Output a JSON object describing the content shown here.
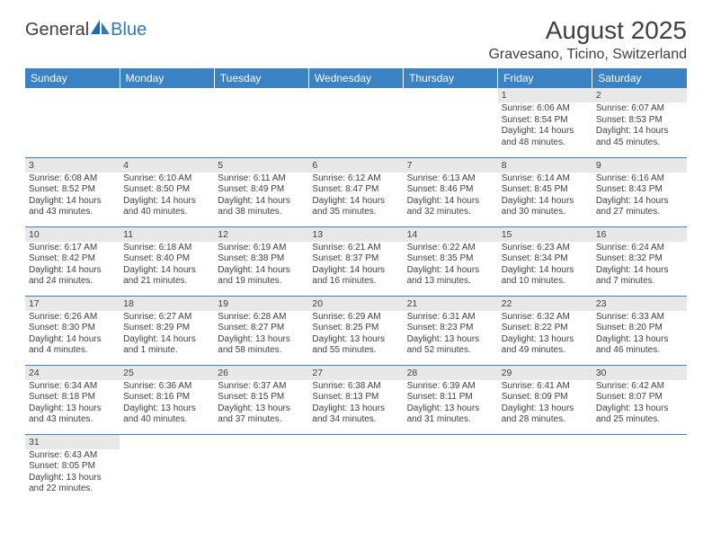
{
  "logo": {
    "part1": "General",
    "part2": "Blue"
  },
  "title": "August 2025",
  "location": "Gravesano, Ticino, Switzerland",
  "colors": {
    "header_bg": "#3b82c4",
    "header_text": "#ffffff",
    "daynum_bg": "#e8e8e8",
    "text": "#404040",
    "rule": "#3b82c4",
    "logo_blue": "#2b7bbf"
  },
  "daysOfWeek": [
    "Sunday",
    "Monday",
    "Tuesday",
    "Wednesday",
    "Thursday",
    "Friday",
    "Saturday"
  ],
  "weeks": [
    [
      null,
      null,
      null,
      null,
      null,
      {
        "n": "1",
        "sr": "Sunrise: 6:06 AM",
        "ss": "Sunset: 8:54 PM",
        "d1": "Daylight: 14 hours",
        "d2": "and 48 minutes."
      },
      {
        "n": "2",
        "sr": "Sunrise: 6:07 AM",
        "ss": "Sunset: 8:53 PM",
        "d1": "Daylight: 14 hours",
        "d2": "and 45 minutes."
      }
    ],
    [
      {
        "n": "3",
        "sr": "Sunrise: 6:08 AM",
        "ss": "Sunset: 8:52 PM",
        "d1": "Daylight: 14 hours",
        "d2": "and 43 minutes."
      },
      {
        "n": "4",
        "sr": "Sunrise: 6:10 AM",
        "ss": "Sunset: 8:50 PM",
        "d1": "Daylight: 14 hours",
        "d2": "and 40 minutes."
      },
      {
        "n": "5",
        "sr": "Sunrise: 6:11 AM",
        "ss": "Sunset: 8:49 PM",
        "d1": "Daylight: 14 hours",
        "d2": "and 38 minutes."
      },
      {
        "n": "6",
        "sr": "Sunrise: 6:12 AM",
        "ss": "Sunset: 8:47 PM",
        "d1": "Daylight: 14 hours",
        "d2": "and 35 minutes."
      },
      {
        "n": "7",
        "sr": "Sunrise: 6:13 AM",
        "ss": "Sunset: 8:46 PM",
        "d1": "Daylight: 14 hours",
        "d2": "and 32 minutes."
      },
      {
        "n": "8",
        "sr": "Sunrise: 6:14 AM",
        "ss": "Sunset: 8:45 PM",
        "d1": "Daylight: 14 hours",
        "d2": "and 30 minutes."
      },
      {
        "n": "9",
        "sr": "Sunrise: 6:16 AM",
        "ss": "Sunset: 8:43 PM",
        "d1": "Daylight: 14 hours",
        "d2": "and 27 minutes."
      }
    ],
    [
      {
        "n": "10",
        "sr": "Sunrise: 6:17 AM",
        "ss": "Sunset: 8:42 PM",
        "d1": "Daylight: 14 hours",
        "d2": "and 24 minutes."
      },
      {
        "n": "11",
        "sr": "Sunrise: 6:18 AM",
        "ss": "Sunset: 8:40 PM",
        "d1": "Daylight: 14 hours",
        "d2": "and 21 minutes."
      },
      {
        "n": "12",
        "sr": "Sunrise: 6:19 AM",
        "ss": "Sunset: 8:38 PM",
        "d1": "Daylight: 14 hours",
        "d2": "and 19 minutes."
      },
      {
        "n": "13",
        "sr": "Sunrise: 6:21 AM",
        "ss": "Sunset: 8:37 PM",
        "d1": "Daylight: 14 hours",
        "d2": "and 16 minutes."
      },
      {
        "n": "14",
        "sr": "Sunrise: 6:22 AM",
        "ss": "Sunset: 8:35 PM",
        "d1": "Daylight: 14 hours",
        "d2": "and 13 minutes."
      },
      {
        "n": "15",
        "sr": "Sunrise: 6:23 AM",
        "ss": "Sunset: 8:34 PM",
        "d1": "Daylight: 14 hours",
        "d2": "and 10 minutes."
      },
      {
        "n": "16",
        "sr": "Sunrise: 6:24 AM",
        "ss": "Sunset: 8:32 PM",
        "d1": "Daylight: 14 hours",
        "d2": "and 7 minutes."
      }
    ],
    [
      {
        "n": "17",
        "sr": "Sunrise: 6:26 AM",
        "ss": "Sunset: 8:30 PM",
        "d1": "Daylight: 14 hours",
        "d2": "and 4 minutes."
      },
      {
        "n": "18",
        "sr": "Sunrise: 6:27 AM",
        "ss": "Sunset: 8:29 PM",
        "d1": "Daylight: 14 hours",
        "d2": "and 1 minute."
      },
      {
        "n": "19",
        "sr": "Sunrise: 6:28 AM",
        "ss": "Sunset: 8:27 PM",
        "d1": "Daylight: 13 hours",
        "d2": "and 58 minutes."
      },
      {
        "n": "20",
        "sr": "Sunrise: 6:29 AM",
        "ss": "Sunset: 8:25 PM",
        "d1": "Daylight: 13 hours",
        "d2": "and 55 minutes."
      },
      {
        "n": "21",
        "sr": "Sunrise: 6:31 AM",
        "ss": "Sunset: 8:23 PM",
        "d1": "Daylight: 13 hours",
        "d2": "and 52 minutes."
      },
      {
        "n": "22",
        "sr": "Sunrise: 6:32 AM",
        "ss": "Sunset: 8:22 PM",
        "d1": "Daylight: 13 hours",
        "d2": "and 49 minutes."
      },
      {
        "n": "23",
        "sr": "Sunrise: 6:33 AM",
        "ss": "Sunset: 8:20 PM",
        "d1": "Daylight: 13 hours",
        "d2": "and 46 minutes."
      }
    ],
    [
      {
        "n": "24",
        "sr": "Sunrise: 6:34 AM",
        "ss": "Sunset: 8:18 PM",
        "d1": "Daylight: 13 hours",
        "d2": "and 43 minutes."
      },
      {
        "n": "25",
        "sr": "Sunrise: 6:36 AM",
        "ss": "Sunset: 8:16 PM",
        "d1": "Daylight: 13 hours",
        "d2": "and 40 minutes."
      },
      {
        "n": "26",
        "sr": "Sunrise: 6:37 AM",
        "ss": "Sunset: 8:15 PM",
        "d1": "Daylight: 13 hours",
        "d2": "and 37 minutes."
      },
      {
        "n": "27",
        "sr": "Sunrise: 6:38 AM",
        "ss": "Sunset: 8:13 PM",
        "d1": "Daylight: 13 hours",
        "d2": "and 34 minutes."
      },
      {
        "n": "28",
        "sr": "Sunrise: 6:39 AM",
        "ss": "Sunset: 8:11 PM",
        "d1": "Daylight: 13 hours",
        "d2": "and 31 minutes."
      },
      {
        "n": "29",
        "sr": "Sunrise: 6:41 AM",
        "ss": "Sunset: 8:09 PM",
        "d1": "Daylight: 13 hours",
        "d2": "and 28 minutes."
      },
      {
        "n": "30",
        "sr": "Sunrise: 6:42 AM",
        "ss": "Sunset: 8:07 PM",
        "d1": "Daylight: 13 hours",
        "d2": "and 25 minutes."
      }
    ],
    [
      {
        "n": "31",
        "sr": "Sunrise: 6:43 AM",
        "ss": "Sunset: 8:05 PM",
        "d1": "Daylight: 13 hours",
        "d2": "and 22 minutes."
      },
      null,
      null,
      null,
      null,
      null,
      null
    ]
  ]
}
